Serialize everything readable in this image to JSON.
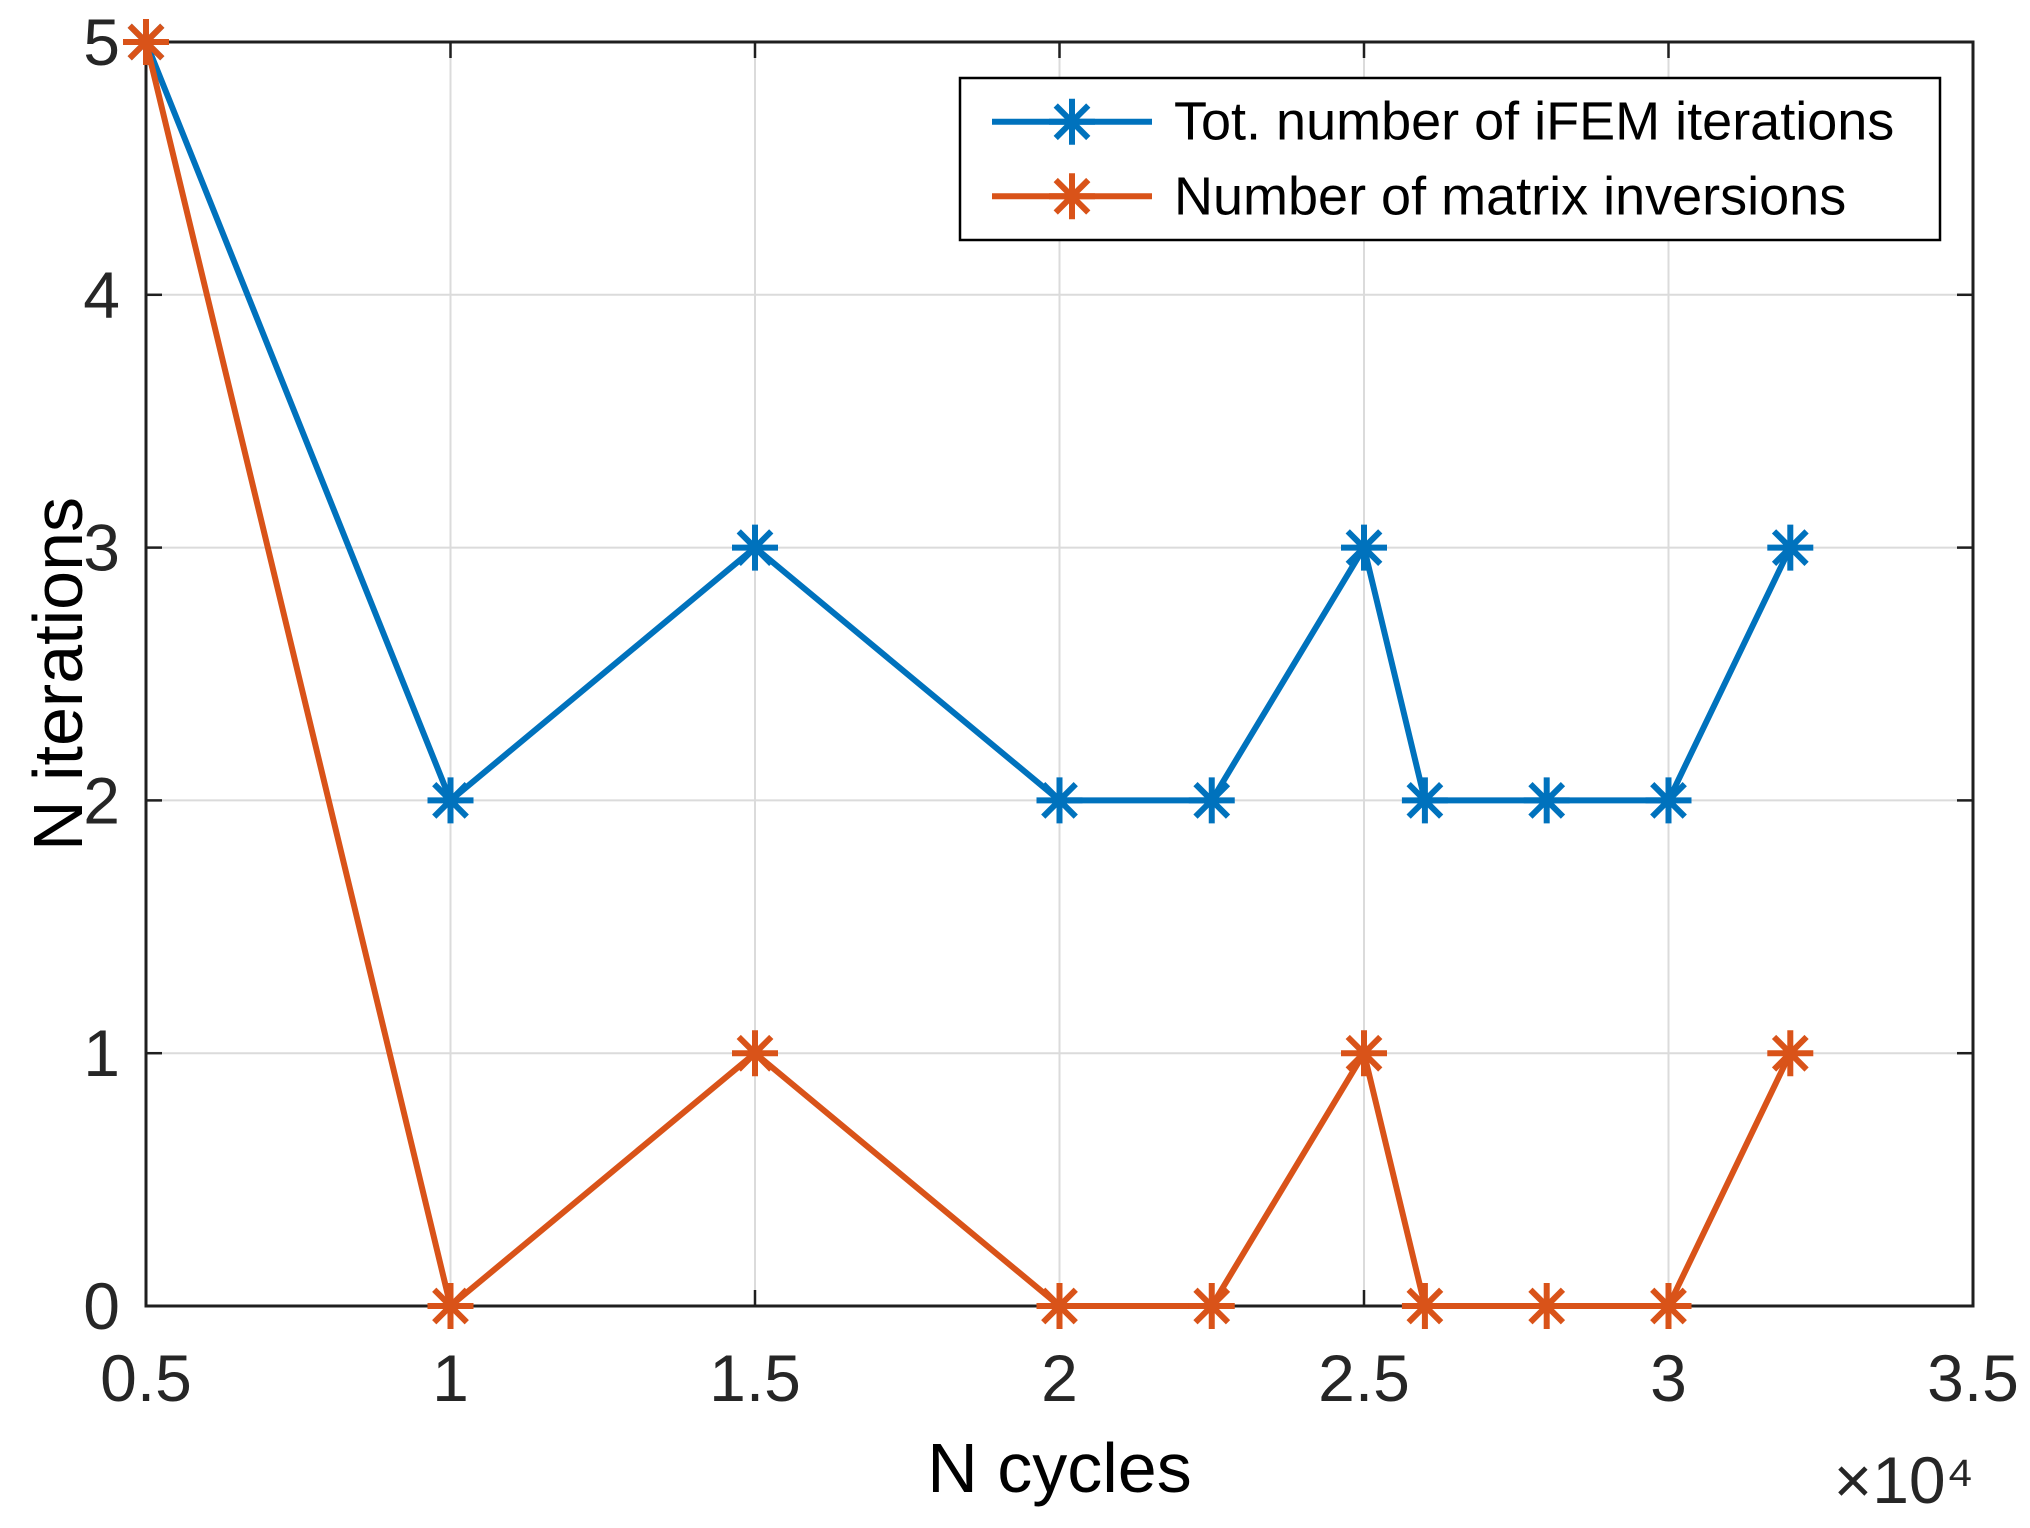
{
  "chart_data": {
    "type": "line",
    "title": "",
    "xlabel": "N cycles",
    "ylabel": "N iterations",
    "x_axis_multiplier": "×10⁴",
    "xlim": [
      0.5,
      3.5
    ],
    "ylim": [
      0,
      5
    ],
    "x_ticks": [
      0.5,
      1,
      1.5,
      2,
      2.5,
      3,
      3.5
    ],
    "x_tick_labels": [
      "0.5",
      "1",
      "1.5",
      "2",
      "2.5",
      "3",
      "3.5"
    ],
    "y_ticks": [
      0,
      1,
      2,
      3,
      4,
      5
    ],
    "y_tick_labels": [
      "0",
      "1",
      "2",
      "3",
      "4",
      "5"
    ],
    "grid": true,
    "legend_position": "top-right",
    "x": [
      0.5,
      1,
      1.5,
      2,
      2.25,
      2.5,
      2.6,
      2.8,
      3,
      3.2
    ],
    "series": [
      {
        "name": "Tot. number of iFEM iterations",
        "color": "#0072BD",
        "marker": "asterisk",
        "values": [
          5,
          2,
          3,
          2,
          2,
          3,
          2,
          2,
          2,
          3
        ]
      },
      {
        "name": "Number of matrix inversions",
        "color": "#D95319",
        "marker": "asterisk",
        "values": [
          5,
          0,
          1,
          0,
          0,
          1,
          0,
          0,
          0,
          1
        ]
      }
    ],
    "colors": {
      "grid": "#DBDBDB",
      "axis": "#1F1F1F",
      "tick_label": "#262626",
      "axis_label": "#000000",
      "legend_text": "#000000",
      "legend_border": "#000000",
      "legend_background": "#FFFFFF",
      "plot_background": "#FFFFFF"
    }
  }
}
